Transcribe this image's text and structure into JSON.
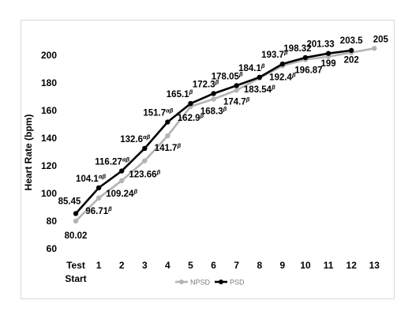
{
  "chart_data": {
    "type": "line",
    "ylabel": "Heart Rate (bpm)",
    "xlabel": "",
    "ylim": [
      60,
      210
    ],
    "yticks": [
      60,
      80,
      100,
      120,
      140,
      160,
      180,
      200
    ],
    "categories": [
      "Test Start",
      "1",
      "2",
      "3",
      "4",
      "5",
      "6",
      "7",
      "8",
      "9",
      "10",
      "11",
      "12",
      "13"
    ],
    "category_lines": [
      [
        "Test",
        "Start"
      ],
      [
        "1"
      ],
      [
        "2"
      ],
      [
        "3"
      ],
      [
        "4"
      ],
      [
        "5"
      ],
      [
        "6"
      ],
      [
        "7"
      ],
      [
        "8"
      ],
      [
        "9"
      ],
      [
        "10"
      ],
      [
        "11"
      ],
      [
        "12"
      ],
      [
        "13"
      ]
    ],
    "legend_position": "bottom",
    "grid": false,
    "series": [
      {
        "name": "NPSD",
        "color": "#b3b3b3",
        "values": [
          80.02,
          96.71,
          109.24,
          123.66,
          141.7,
          162.9,
          168.3,
          174.7,
          183.54,
          192.4,
          196.87,
          199,
          202,
          205
        ],
        "labels": [
          "80.02",
          "96.71",
          "109.24",
          "123.66",
          "141.7",
          "162.9",
          "168.3",
          "174.7",
          "183.54",
          "192.4",
          "196.87",
          "199",
          "202",
          "205"
        ],
        "label_sup": [
          "",
          "β",
          "β",
          "β",
          "β",
          "β",
          "β",
          "β",
          "β",
          "β",
          "",
          "",
          "",
          ""
        ]
      },
      {
        "name": "PSD",
        "color": "#000000",
        "values": [
          85.45,
          104.1,
          116.27,
          132.6,
          151.7,
          165.1,
          172.3,
          178.05,
          184.1,
          193.7,
          198.32,
          201.33,
          203.5,
          null
        ],
        "labels": [
          "85.45",
          "104.1",
          "116.27",
          "132.6",
          "151.7",
          "165.1",
          "172.3",
          "178.05",
          "184.1",
          "193.7",
          "198.32",
          "201.33",
          "203.5",
          ""
        ],
        "label_sup": [
          "",
          "αβ",
          "αβ",
          "αβ",
          "αβ",
          "β",
          "β",
          "β",
          "β",
          "β",
          "",
          "",
          "",
          ""
        ]
      }
    ]
  }
}
